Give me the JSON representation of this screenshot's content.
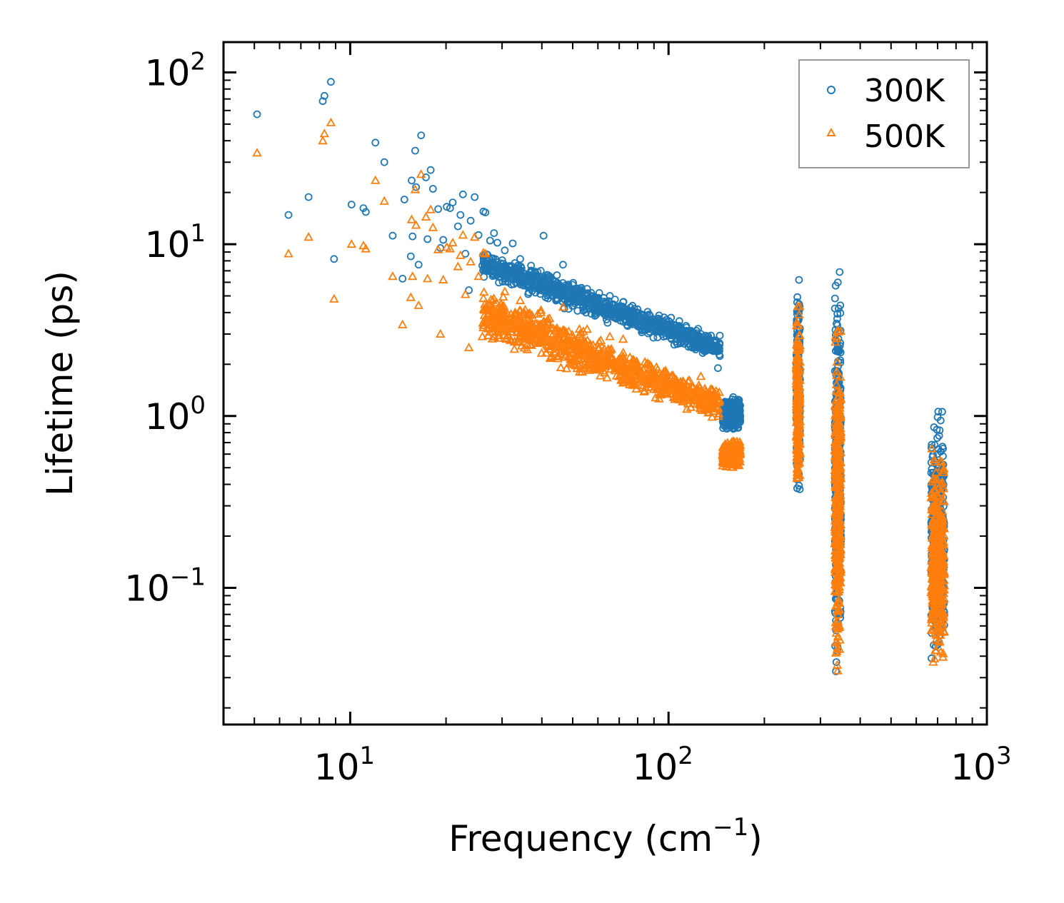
{
  "chart_data": {
    "type": "scatter",
    "xscale": "log",
    "yscale": "log",
    "xlim": [
      4,
      1000
    ],
    "ylim": [
      0.016,
      150
    ],
    "xlabel": {
      "text": "Frequency (cm",
      "sup": "−1",
      "tail": ")"
    },
    "ylabel": "Lifetime (ps)",
    "legend": {
      "position": "top-right",
      "entries": [
        "300K",
        "500K"
      ]
    },
    "x_ticks": [
      {
        "value": 10,
        "base": "10",
        "exp": "1"
      },
      {
        "value": 100,
        "base": "10",
        "exp": "2"
      },
      {
        "value": 1000,
        "base": "10",
        "exp": "3"
      }
    ],
    "y_ticks": [
      {
        "value": 0.1,
        "base": "10",
        "exp": "−1"
      },
      {
        "value": 1,
        "base": "10",
        "exp": "0"
      },
      {
        "value": 10,
        "base": "10",
        "exp": "1"
      },
      {
        "value": 100,
        "base": "10",
        "exp": "2"
      }
    ],
    "series": [
      {
        "name": "300K",
        "marker": "circle",
        "color": "#1f77b4",
        "points": [
          [
            5.1,
            57
          ],
          [
            6.4,
            14.8
          ],
          [
            7.4,
            18.8
          ],
          [
            8.2,
            68
          ],
          [
            8.3,
            73
          ],
          [
            8.7,
            88
          ],
          [
            8.9,
            8.2
          ],
          [
            10.1,
            17
          ],
          [
            11.0,
            16.2
          ],
          [
            11.2,
            15.4
          ],
          [
            12.0,
            39
          ],
          [
            12.8,
            30
          ],
          [
            13.6,
            11.2
          ],
          [
            14.6,
            6.3
          ],
          [
            14.8,
            18.2
          ],
          [
            15.5,
            8.5
          ],
          [
            15.6,
            23.5
          ],
          [
            15.7,
            11.1
          ],
          [
            16.0,
            35
          ],
          [
            16.1,
            21.5
          ],
          [
            16.4,
            7.6
          ],
          [
            16.7,
            43
          ],
          [
            17.3,
            24.5
          ],
          [
            17.5,
            10.7
          ],
          [
            17.9,
            27
          ],
          [
            18.2,
            21
          ],
          [
            18.9,
            16
          ],
          [
            19.2,
            9.5
          ],
          [
            19.6,
            10.6
          ],
          [
            20.1,
            16.5
          ],
          [
            20.6,
            16.2
          ],
          [
            21.0,
            17.5
          ],
          [
            21.8,
            12.7
          ],
          [
            22.2,
            14.8
          ],
          [
            22.6,
            19.5
          ],
          [
            23.0,
            8.8
          ],
          [
            23.6,
            5.4
          ],
          [
            23.9,
            13.7
          ],
          [
            24.6,
            18.8
          ],
          [
            25.3,
            11.3
          ],
          [
            26.2,
            15.5
          ],
          [
            26.6,
            15.3
          ],
          [
            27.5,
            10.5
          ],
          [
            28.3,
            11.6
          ],
          [
            29.0,
            10.2
          ],
          [
            30.6,
            9.2
          ],
          [
            32.4,
            10.1
          ],
          [
            34.2,
            8.2
          ],
          [
            37.0,
            7.5
          ],
          [
            39.7,
            7.0
          ],
          [
            40.5,
            11.2
          ],
          [
            42.3,
            6.5
          ],
          [
            44.6,
            6.6
          ],
          [
            46.6,
            7.6
          ],
          [
            50.0,
            5.8
          ],
          [
            55.5,
            5.5
          ],
          [
            60.6,
            5.2
          ],
          [
            65.4,
            5.0
          ],
          [
            72.0,
            4.6
          ],
          [
            78.1,
            4.2
          ],
          [
            85.3,
            3.5
          ],
          [
            96.4,
            2.9
          ],
          [
            104.2,
            2.6
          ],
          [
            114.3,
            2.9
          ],
          [
            126.3,
            3.0
          ],
          [
            137.1,
            2.4
          ],
          [
            143.0,
            1.9
          ]
        ],
        "clusters": [
          {
            "x_range": [
              26,
              145
            ],
            "y_log10_start": [
              0.78,
              0.99
            ],
            "y_log10_end": [
              0.31,
              0.48
            ],
            "count": 950
          },
          {
            "x_range": [
              148,
              168
            ],
            "y_log10_start": [
              -0.11,
              0.13
            ],
            "y_log10_end": [
              -0.11,
              0.13
            ],
            "count": 320
          },
          {
            "x_range": [
              252,
              259
            ],
            "y_log10_start": [
              -0.54,
              0.93
            ],
            "y_log10_end": [
              -0.54,
              0.93
            ],
            "count": 200
          },
          {
            "x_range": [
              333,
              348
            ],
            "y_log10_start": [
              -1.64,
              0.98
            ],
            "y_log10_end": [
              -1.64,
              0.98
            ],
            "count": 360
          },
          {
            "x_range": [
              668,
              735
            ],
            "y_log10_start": [
              -1.56,
              0.12
            ],
            "y_log10_end": [
              -1.56,
              0.12
            ],
            "count": 360
          }
        ]
      },
      {
        "name": "500K",
        "marker": "triangle",
        "color": "#ff7f0e",
        "points": [
          [
            5.1,
            34
          ],
          [
            6.4,
            8.8
          ],
          [
            7.4,
            11.0
          ],
          [
            8.2,
            40
          ],
          [
            8.3,
            44
          ],
          [
            8.7,
            51
          ],
          [
            8.9,
            4.8
          ],
          [
            10.1,
            10.0
          ],
          [
            11.0,
            9.8
          ],
          [
            11.2,
            9.4
          ],
          [
            12.0,
            23.5
          ],
          [
            12.8,
            17.8
          ],
          [
            13.6,
            6.5
          ],
          [
            14.6,
            3.4
          ],
          [
            15.5,
            4.9
          ],
          [
            15.6,
            13.9
          ],
          [
            15.7,
            6.5
          ],
          [
            16.0,
            20.8
          ],
          [
            16.1,
            12.9
          ],
          [
            16.4,
            4.4
          ],
          [
            16.7,
            25.5
          ],
          [
            17.3,
            14.4
          ],
          [
            17.5,
            6.3
          ],
          [
            17.9,
            15.9
          ],
          [
            18.2,
            12.5
          ],
          [
            18.9,
            9.3
          ],
          [
            19.2,
            3.0
          ],
          [
            19.6,
            6.2
          ],
          [
            20.1,
            9.6
          ],
          [
            20.6,
            9.4
          ],
          [
            21.0,
            10.2
          ],
          [
            21.8,
            7.4
          ],
          [
            22.2,
            8.6
          ],
          [
            22.6,
            11.3
          ],
          [
            23.0,
            5.1
          ],
          [
            23.6,
            2.5
          ],
          [
            23.9,
            7.9
          ],
          [
            24.6,
            11.0
          ],
          [
            25.3,
            6.5
          ],
          [
            26.2,
            8.9
          ],
          [
            26.6,
            8.8
          ],
          [
            30.6,
            5.3
          ],
          [
            34.2,
            4.7
          ],
          [
            39.7,
            4.0
          ],
          [
            42.3,
            3.7
          ],
          [
            46.6,
            4.3
          ],
          [
            55.5,
            3.2
          ],
          [
            65.4,
            2.9
          ],
          [
            72.0,
            2.8
          ],
          [
            85.3,
            2.0
          ],
          [
            96.4,
            1.4
          ],
          [
            104.2,
            1.3
          ],
          [
            114.3,
            1.5
          ],
          [
            126.3,
            1.7
          ],
          [
            137.1,
            1.4
          ],
          [
            143.0,
            1.1
          ]
        ],
        "clusters": [
          {
            "x_range": [
              26,
              145
            ],
            "y_log10_start": [
              0.42,
              0.78
            ],
            "y_log10_end": [
              -0.05,
              0.16
            ],
            "count": 950
          },
          {
            "x_range": [
              148,
              168
            ],
            "y_log10_start": [
              -0.31,
              -0.13
            ],
            "y_log10_end": [
              -0.31,
              -0.13
            ],
            "count": 320
          },
          {
            "x_range": [
              252,
              259
            ],
            "y_log10_start": [
              -0.59,
              0.69
            ],
            "y_log10_end": [
              -0.59,
              0.69
            ],
            "count": 200
          },
          {
            "x_range": [
              333,
              348
            ],
            "y_log10_start": [
              -1.68,
              0.72
            ],
            "y_log10_end": [
              -1.68,
              0.72
            ],
            "count": 360
          },
          {
            "x_range": [
              668,
              735
            ],
            "y_log10_start": [
              -1.56,
              -0.13
            ],
            "y_log10_end": [
              -1.56,
              -0.13
            ],
            "count": 360
          }
        ]
      }
    ]
  }
}
